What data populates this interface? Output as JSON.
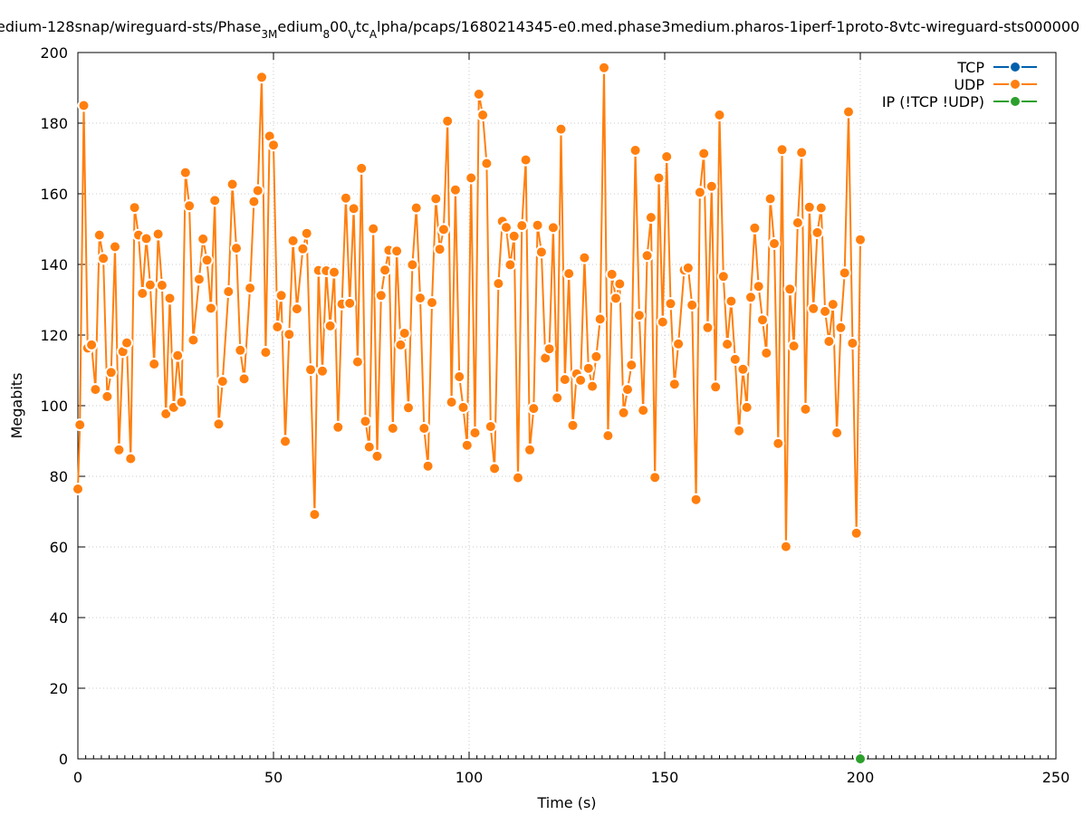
{
  "chart_data": {
    "type": "line",
    "title": "edium-128snap/wireguard-sts/Phase",
    "title_parts": [
      {
        "text": "edium-128snap/wireguard-sts/Phase",
        "sub": false
      },
      {
        "text": "3M",
        "sub": true
      },
      {
        "text": "edium",
        "sub": false
      },
      {
        "text": "8",
        "sub": true
      },
      {
        "text": "00",
        "sub": false
      },
      {
        "text": "V",
        "sub": true
      },
      {
        "text": "tc",
        "sub": false
      },
      {
        "text": "A",
        "sub": true
      },
      {
        "text": "lpha/pcaps/1680214345-e0.med.phase3medium.pharos-1iperf-1proto-8vtc-wireguard-sts000000",
        "sub": false
      }
    ],
    "xlabel": "Time (s)",
    "ylabel": "Megabits",
    "xlim": [
      0,
      250
    ],
    "ylim": [
      0,
      200
    ],
    "x_ticks": [
      "0",
      "50",
      "100",
      "150",
      "200",
      "250"
    ],
    "y_ticks": [
      "0",
      "20",
      "40",
      "60",
      "80",
      "100",
      "120",
      "140",
      "160",
      "180",
      "200"
    ],
    "grid": true,
    "legend_position": "top-right",
    "series": [
      {
        "name": "TCP",
        "color": "#0060ad",
        "points": []
      },
      {
        "name": "UDP",
        "color": "#ff7f0e",
        "points": [
          [
            0,
            76.4
          ],
          [
            0.5,
            94.6
          ],
          [
            1.5,
            185
          ],
          [
            2.5,
            116.3
          ],
          [
            3.5,
            117.2
          ],
          [
            4.5,
            104.6
          ],
          [
            5.5,
            148.3
          ],
          [
            6.5,
            141.7
          ],
          [
            7.5,
            102.6
          ],
          [
            8.5,
            109.4
          ],
          [
            9.5,
            145
          ],
          [
            10.5,
            87.5
          ],
          [
            11.5,
            115.3
          ],
          [
            12.5,
            117.8
          ],
          [
            13.5,
            85
          ],
          [
            14.5,
            156.1
          ],
          [
            15.5,
            148.3
          ],
          [
            16.5,
            131.8
          ],
          [
            17.5,
            147.3
          ],
          [
            18.5,
            134.2
          ],
          [
            19.5,
            111.8
          ],
          [
            20.5,
            148.6
          ],
          [
            21.5,
            134.1
          ],
          [
            22.5,
            97.7
          ],
          [
            23.5,
            130.4
          ],
          [
            24.5,
            99.5
          ],
          [
            25.5,
            114.2
          ],
          [
            26.5,
            101
          ],
          [
            27.5,
            166
          ],
          [
            28.5,
            156.6
          ],
          [
            29.5,
            118.6
          ],
          [
            31,
            135.8
          ],
          [
            32,
            147.2
          ],
          [
            33,
            141.2
          ],
          [
            34,
            127.6
          ],
          [
            35,
            158.1
          ],
          [
            36,
            94.8
          ],
          [
            37,
            106.9
          ],
          [
            38.5,
            132.3
          ],
          [
            39.5,
            162.7
          ],
          [
            40.5,
            144.6
          ],
          [
            41.5,
            115.7
          ],
          [
            42.5,
            107.6
          ],
          [
            44,
            133.3
          ],
          [
            45,
            157.8
          ],
          [
            46,
            160.9
          ],
          [
            47,
            193
          ],
          [
            48,
            115.1
          ],
          [
            49,
            176.3
          ],
          [
            50,
            173.8
          ],
          [
            51,
            122.3
          ],
          [
            52,
            131.2
          ],
          [
            53,
            89.9
          ],
          [
            54,
            120.2
          ],
          [
            55,
            146.7
          ],
          [
            56,
            127.4
          ],
          [
            57.5,
            144.4
          ],
          [
            58.5,
            148.8
          ],
          [
            59.5,
            110.2
          ],
          [
            60.5,
            69.2
          ],
          [
            61.5,
            138.3
          ],
          [
            62.5,
            109.8
          ],
          [
            63.5,
            138.2
          ],
          [
            64.5,
            122.6
          ],
          [
            65.5,
            137.8
          ],
          [
            66.5,
            93.9
          ],
          [
            67.5,
            128.8
          ],
          [
            68.5,
            158.8
          ],
          [
            69.5,
            129
          ],
          [
            70.5,
            155.8
          ],
          [
            71.5,
            112.4
          ],
          [
            72.5,
            167.2
          ],
          [
            73.5,
            95.6
          ],
          [
            74.5,
            88.3
          ],
          [
            75.5,
            150.1
          ],
          [
            76.5,
            85.7
          ],
          [
            77.5,
            131.2
          ],
          [
            78.5,
            138.4
          ],
          [
            79.5,
            144
          ],
          [
            80.5,
            93.6
          ],
          [
            81.5,
            143.8
          ],
          [
            82.5,
            117.2
          ],
          [
            83.5,
            120.5
          ],
          [
            84.5,
            99.4
          ],
          [
            85.5,
            139.9
          ],
          [
            86.5,
            156
          ],
          [
            87.5,
            130.5
          ],
          [
            88.5,
            93.6
          ],
          [
            89.5,
            82.9
          ],
          [
            90.5,
            129.2
          ],
          [
            91.5,
            158.6
          ],
          [
            92.5,
            144.3
          ],
          [
            93.5,
            149.9
          ],
          [
            94.5,
            180.6
          ],
          [
            95.5,
            101
          ],
          [
            96.5,
            161.1
          ],
          [
            97.5,
            108.2
          ],
          [
            98.5,
            99.5
          ],
          [
            99.5,
            88.8
          ],
          [
            100.5,
            164.5
          ],
          [
            101.5,
            92.3
          ],
          [
            102.5,
            188.2
          ],
          [
            103.5,
            182.3
          ],
          [
            104.5,
            168.6
          ],
          [
            105.5,
            94.1
          ],
          [
            106.5,
            82.2
          ],
          [
            107.5,
            134.6
          ],
          [
            108.5,
            152.2
          ],
          [
            109.5,
            150.5
          ],
          [
            110.5,
            139.9
          ],
          [
            111.5,
            148
          ],
          [
            112.5,
            79.6
          ],
          [
            113.5,
            151
          ],
          [
            114.5,
            169.6
          ],
          [
            115.5,
            87.5
          ],
          [
            116.5,
            99.2
          ],
          [
            117.5,
            151.1
          ],
          [
            118.5,
            143.5
          ],
          [
            119.5,
            113.5
          ],
          [
            120.5,
            116.1
          ],
          [
            121.5,
            150.4
          ],
          [
            122.5,
            102.2
          ],
          [
            123.5,
            178.3
          ],
          [
            124.5,
            107.4
          ],
          [
            125.5,
            137.4
          ],
          [
            126.5,
            94.4
          ],
          [
            127.5,
            109
          ],
          [
            128.5,
            107.2
          ],
          [
            129.5,
            141.9
          ],
          [
            130.5,
            110.6
          ],
          [
            131.5,
            105.5
          ],
          [
            132.5,
            113.9
          ],
          [
            133.5,
            124.5
          ],
          [
            134.5,
            195.7
          ],
          [
            135.5,
            91.5
          ],
          [
            136.5,
            137.2
          ],
          [
            137.5,
            130.4
          ],
          [
            138.5,
            134.5
          ],
          [
            139.5,
            98
          ],
          [
            140.5,
            104.6
          ],
          [
            141.5,
            111.5
          ],
          [
            142.5,
            172.3
          ],
          [
            143.5,
            125.6
          ],
          [
            144.5,
            98.7
          ],
          [
            145.5,
            142.5
          ],
          [
            146.5,
            153.3
          ],
          [
            147.5,
            79.7
          ],
          [
            148.5,
            164.5
          ],
          [
            149.5,
            123.7
          ],
          [
            150.5,
            170.5
          ],
          [
            151.5,
            128.9
          ],
          [
            152.5,
            106.1
          ],
          [
            153.5,
            117.5
          ],
          [
            155,
            138.4
          ],
          [
            156,
            139
          ],
          [
            157,
            128.5
          ],
          [
            158,
            73.4
          ],
          [
            159,
            160.4
          ],
          [
            160,
            171.4
          ],
          [
            161,
            122.1
          ],
          [
            162,
            162.1
          ],
          [
            163,
            105.3
          ],
          [
            164,
            182.3
          ],
          [
            165,
            136.6
          ],
          [
            166,
            117.4
          ],
          [
            167,
            129.6
          ],
          [
            168,
            113.1
          ],
          [
            169,
            92.9
          ],
          [
            170,
            110.3
          ],
          [
            171,
            99.5
          ],
          [
            172,
            130.7
          ],
          [
            173,
            150.3
          ],
          [
            174,
            133.8
          ],
          [
            175,
            124.3
          ],
          [
            176,
            114.9
          ],
          [
            177,
            158.6
          ],
          [
            178,
            145.9
          ],
          [
            179,
            89.3
          ],
          [
            180,
            172.5
          ],
          [
            181,
            60.1
          ],
          [
            182,
            133
          ],
          [
            183,
            116.9
          ],
          [
            184,
            151.8
          ],
          [
            185,
            171.7
          ],
          [
            186,
            99
          ],
          [
            187,
            156.2
          ],
          [
            188,
            127.5
          ],
          [
            189,
            149
          ],
          [
            190,
            156
          ],
          [
            191,
            126.7
          ],
          [
            192,
            118.2
          ],
          [
            193,
            128.7
          ],
          [
            194,
            92.3
          ],
          [
            195,
            122.1
          ],
          [
            196,
            137.6
          ],
          [
            197,
            183.2
          ],
          [
            198,
            117.7
          ],
          [
            199,
            63.9
          ],
          [
            200,
            147
          ]
        ]
      },
      {
        "name": "IP (!TCP  !UDP)",
        "color": "#2ca02c",
        "points": [
          [
            200,
            0
          ]
        ]
      }
    ]
  }
}
